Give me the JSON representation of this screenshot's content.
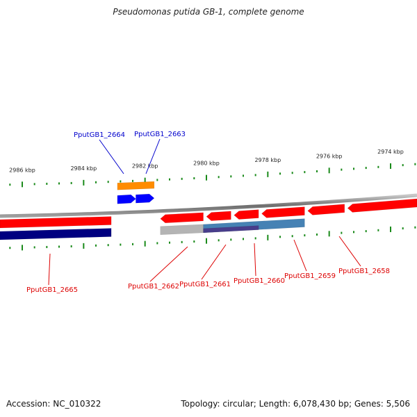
{
  "title": "Pseudomonas putida GB-1, complete genome",
  "footer": {
    "accession": "Accession: NC_010322",
    "summary": "Topology: circular; Length: 6,078,430 bp; Genes: 5,506"
  },
  "colors": {
    "backbone": "#808080",
    "ruler_tick": "#1a8a1a",
    "forward_cds": "#0000ff",
    "forward_gene": "#ff8c00",
    "reverse_cds": "#ff0000",
    "reverse_gene_dark": "#000080",
    "reverse_gene_grey": "#b4b4b4",
    "reverse_gene_blue": "#4682b4",
    "reverse_gene_purple": "#483d8b",
    "label_forward": "#0000cc",
    "label_reverse": "#dd0000"
  },
  "chart_data": {
    "type": "genome-map",
    "view": "linear-zoom of circular map",
    "range_kbp": [
      2972.5,
      2987.5
    ],
    "direction": "right-to-left (position decreases to the right)",
    "ruler_outer": {
      "labels": [
        "2986 kbp",
        "2984 kbp",
        "2982 kbp",
        "2980 kbp",
        "2978 kbp",
        "2976 kbp",
        "2974 kbp"
      ],
      "major_ticks_kbp": [
        2986,
        2984,
        2982,
        2980,
        2978,
        2976,
        2974
      ],
      "minor_step_kbp": 0.4
    },
    "ruler_inner": {
      "major_ticks_kbp": [
        2986,
        2984,
        2982,
        2980,
        2978,
        2976,
        2974
      ],
      "minor_step_kbp": 0.4
    },
    "features": [
      {
        "label": "PputGB1_2664",
        "strand": "+",
        "track": "cds",
        "color": "forward_cds",
        "start_kbp": 2982.9,
        "end_kbp": 2982.3
      },
      {
        "label": "PputGB1_2663",
        "strand": "+",
        "track": "cds",
        "color": "forward_cds",
        "start_kbp": 2982.3,
        "end_kbp": 2981.7
      },
      {
        "label": "",
        "strand": "+",
        "track": "gene",
        "color": "forward_gene",
        "start_kbp": 2982.9,
        "end_kbp": 2981.7
      },
      {
        "label": "PputGB1_2665",
        "strand": "-",
        "track": "cds",
        "color": "reverse_cds",
        "start_kbp": 2987.5,
        "end_kbp": 2983.1
      },
      {
        "label": "",
        "strand": "-",
        "track": "gene",
        "color": "reverse_gene_dark",
        "start_kbp": 2987.5,
        "end_kbp": 2983.1
      },
      {
        "label": "PputGB1_2662",
        "strand": "-",
        "track": "cds",
        "color": "reverse_cds",
        "start_kbp": 2981.5,
        "end_kbp": 2980.1
      },
      {
        "label": "PputGB1_2661",
        "strand": "-",
        "track": "cds",
        "color": "reverse_cds",
        "start_kbp": 2980.0,
        "end_kbp": 2979.2
      },
      {
        "label": "PputGB1_2660",
        "strand": "-",
        "track": "cds",
        "color": "reverse_cds",
        "start_kbp": 2979.1,
        "end_kbp": 2978.3
      },
      {
        "label": "PputGB1_2659",
        "strand": "-",
        "track": "cds",
        "color": "reverse_cds",
        "start_kbp": 2978.2,
        "end_kbp": 2976.8
      },
      {
        "label": "PputGB1_2658",
        "strand": "-",
        "track": "cds",
        "color": "reverse_cds",
        "start_kbp": 2976.7,
        "end_kbp": 2975.5
      },
      {
        "label": "",
        "strand": "-",
        "track": "cds",
        "color": "reverse_cds",
        "start_kbp": 2975.4,
        "end_kbp": 2972.5
      },
      {
        "label": "",
        "strand": "-",
        "track": "gene",
        "color": "reverse_gene_grey",
        "start_kbp": 2981.5,
        "end_kbp": 2980.1
      },
      {
        "label": "",
        "strand": "-",
        "track": "gene",
        "color": "reverse_gene_blue",
        "start_kbp": 2980.1,
        "end_kbp": 2976.8
      },
      {
        "label": "",
        "strand": "-",
        "track": "gene-inner",
        "color": "reverse_gene_purple",
        "start_kbp": 2980.1,
        "end_kbp": 2978.3
      }
    ]
  }
}
